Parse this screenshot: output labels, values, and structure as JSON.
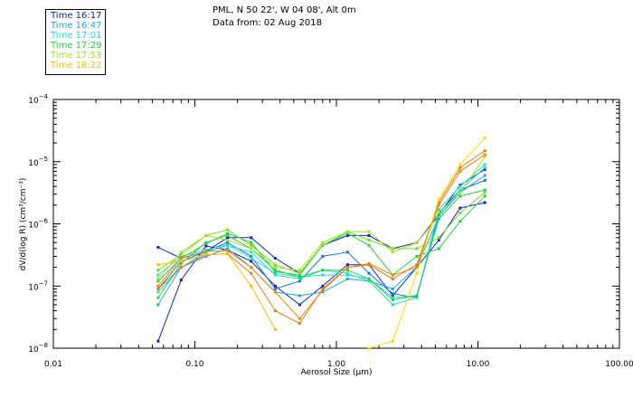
{
  "header": {
    "location": "PML, N 50 22', W 04 08', Alt 0m",
    "data_from": "Data from: 02 Aug 2018"
  },
  "legend": [
    {
      "label": "Time 16:17",
      "color": "#1020c8"
    },
    {
      "label": "Time 16:47",
      "color": "#18a8e8"
    },
    {
      "label": "Time 17:01",
      "color": "#20e0c8"
    },
    {
      "label": "Time 17:29",
      "color": "#20d040"
    },
    {
      "label": "Time 17:53",
      "color": "#a8e020"
    },
    {
      "label": "Time 18:22",
      "color": "#f0c000"
    }
  ],
  "chart_data": {
    "type": "line",
    "xlabel": "Aerosol Size (μm)",
    "ylabel": "dV/d(log R) (cm³/cm⁻³)",
    "x_scale": "log",
    "y_scale": "log",
    "xlim": [
      0.01,
      100
    ],
    "ylim": [
      1e-08,
      0.0001
    ],
    "x_ticks": [
      {
        "value": 0.01,
        "label": "0.01"
      },
      {
        "value": 0.1,
        "label": "0.10"
      },
      {
        "value": 1,
        "label": "1.00"
      },
      {
        "value": 10,
        "label": "10.00"
      },
      {
        "value": 100,
        "label": "100.00"
      }
    ],
    "y_ticks": [
      {
        "value": 1e-08,
        "mant": "10",
        "exp": "−8"
      },
      {
        "value": 1e-07,
        "mant": "10",
        "exp": "−7"
      },
      {
        "value": 1e-06,
        "mant": "10",
        "exp": "−6"
      },
      {
        "value": 1e-05,
        "mant": "10",
        "exp": "−5"
      },
      {
        "value": 0.0001,
        "mant": "10",
        "exp": "−4"
      }
    ],
    "x": [
      0.055,
      0.08,
      0.12,
      0.17,
      0.25,
      0.37,
      0.55,
      0.8,
      1.2,
      1.7,
      2.5,
      3.7,
      5.3,
      7.5,
      11.2
    ],
    "series": [
      {
        "color": "#1020c8",
        "values": [
          1.3e-08,
          1.25e-07,
          4.4e-07,
          3.8e-07,
          2.5e-07,
          1e-07,
          5e-08,
          1e-07,
          2.2e-07,
          2.2e-07,
          7e-08,
          2e-07,
          5.5e-07,
          1.8e-06,
          2.2e-06
        ]
      },
      {
        "color": "#1020c8",
        "values": [
          4.2e-07,
          2.8e-07,
          3.6e-07,
          6e-07,
          6e-07,
          2.8e-07,
          1.6e-07,
          4.5e-07,
          6.5e-07,
          6.5e-07,
          4e-07,
          5e-07,
          1.4e-06,
          4.2e-06,
          7.5e-06
        ]
      },
      {
        "color": "#1478e0",
        "values": [
          9e-08,
          2.5e-07,
          3.6e-07,
          5e-07,
          3e-07,
          9e-08,
          1.2e-07,
          3e-07,
          3.5e-07,
          1.6e-07,
          7.5e-08,
          6.5e-08,
          1.5e-06,
          3.5e-06,
          5e-06
        ]
      },
      {
        "color": "#18a8e8",
        "values": [
          5e-08,
          2e-07,
          3e-07,
          4e-07,
          2e-07,
          8e-08,
          7e-08,
          8e-08,
          1.3e-07,
          1.2e-07,
          9e-08,
          2e-07,
          1.3e-06,
          3.2e-06,
          6e-06
        ]
      },
      {
        "color": "#20e0c8",
        "values": [
          8e-08,
          2e-07,
          3.5e-07,
          4.5e-07,
          3.5e-07,
          1.5e-07,
          1.3e-07,
          1.8e-07,
          1.6e-07,
          1.2e-07,
          5e-08,
          6.5e-08,
          1.7e-06,
          4e-06,
          9e-06
        ]
      },
      {
        "color": "#20e0c8",
        "values": [
          1.5e-07,
          3e-07,
          3.8e-07,
          4.6e-07,
          2.8e-07,
          1.6e-07,
          1.4e-07,
          1.5e-07,
          1.5e-07,
          1.3e-07,
          6.5e-08,
          7e-08,
          1.3e-06,
          3.5e-06,
          8e-06
        ]
      },
      {
        "color": "#20d040",
        "values": [
          6.5e-08,
          2.3e-07,
          5e-07,
          6.5e-07,
          4e-07,
          1.8e-07,
          1.4e-07,
          1.8e-07,
          1.8e-07,
          1.3e-07,
          6e-08,
          7e-08,
          1.2e-06,
          2.8e-06,
          3.5e-06
        ]
      },
      {
        "color": "#20d040",
        "values": [
          1.2e-07,
          2.8e-07,
          4.8e-07,
          7e-07,
          5e-07,
          1.7e-07,
          1.5e-07,
          4.5e-07,
          7e-07,
          4.5e-07,
          1.5e-07,
          3e-07,
          4e-07,
          1.1e-06,
          2.8e-06
        ]
      },
      {
        "color": "#70e020",
        "values": [
          1.8e-07,
          3.2e-07,
          6.5e-07,
          8e-07,
          4.5e-07,
          2.2e-07,
          1.6e-07,
          4.5e-07,
          7.5e-07,
          5.5e-07,
          4e-07,
          4e-07,
          6e-07,
          1.5e-06,
          3.2e-06
        ]
      },
      {
        "color": "#a8e020",
        "values": [
          1.3e-07,
          3.5e-07,
          6.5e-07,
          5.5e-07,
          4e-07,
          2e-07,
          1.8e-07,
          5e-07,
          7.5e-07,
          7.5e-07,
          3.5e-07,
          5e-07,
          1.5e-06,
          3.2e-06,
          1.2e-05
        ]
      },
      {
        "color": "#e87818",
        "values": [
          9e-08,
          2e-07,
          3.2e-07,
          3.3e-07,
          1.6e-07,
          4e-08,
          2.5e-08,
          9e-08,
          2e-07,
          2.2e-07,
          1.3e-07,
          2.2e-07,
          2.2e-06,
          8e-06,
          1.5e-05
        ]
      },
      {
        "color": "#f08800",
        "values": [
          1e-07,
          2.8e-07,
          3.6e-07,
          3.7e-07,
          2e-07,
          8e-08,
          3e-08,
          8.5e-08,
          2e-07,
          2.3e-07,
          1.5e-07,
          2e-07,
          2e-06,
          7e-06,
          1.3e-05
        ]
      },
      {
        "color": "#f0c000",
        "values": [
          2.2e-07,
          2.5e-07,
          3.2e-07,
          3.3e-07,
          1e-07,
          2e-08,
          null,
          null,
          null,
          null,
          null,
          null,
          null,
          null,
          null
        ]
      },
      {
        "color": "#f0e000",
        "values": [
          null,
          null,
          null,
          null,
          null,
          null,
          null,
          null,
          null,
          1e-08,
          1.3e-08,
          1.6e-07,
          2.5e-06,
          9e-06,
          2.4e-05
        ]
      }
    ]
  }
}
